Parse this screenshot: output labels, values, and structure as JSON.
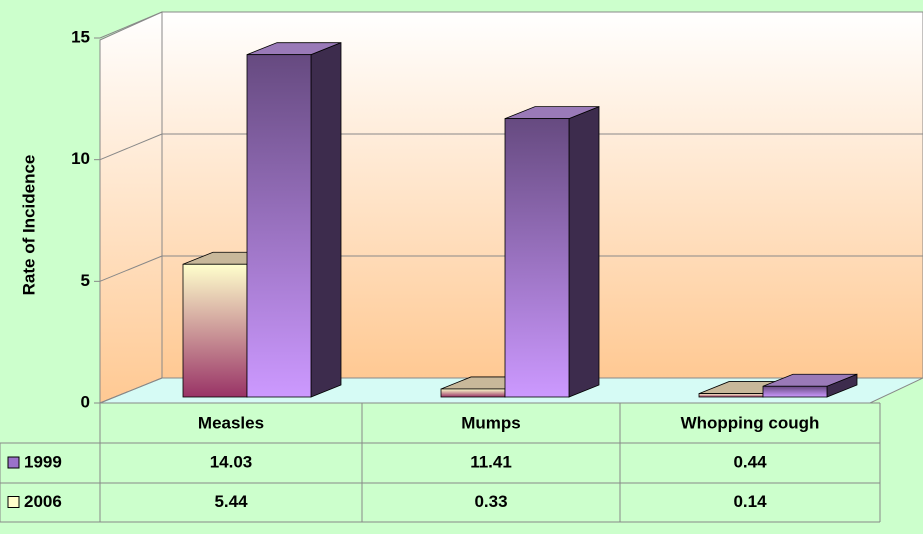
{
  "chart_data": {
    "type": "bar3d",
    "y_label": "Rate of Incidence",
    "categories": [
      "Measles",
      "Mumps",
      "Whopping cough"
    ],
    "series": [
      {
        "name": "1999",
        "color": "#cc99ff",
        "values": [
          14.03,
          11.41,
          0.44
        ]
      },
      {
        "name": "2006",
        "color": "#ffffcc",
        "values": [
          5.44,
          0.33,
          0.14
        ]
      }
    ],
    "ylim": [
      0,
      15
    ],
    "yticks": [
      0,
      5,
      10,
      15
    ],
    "grid": true
  }
}
